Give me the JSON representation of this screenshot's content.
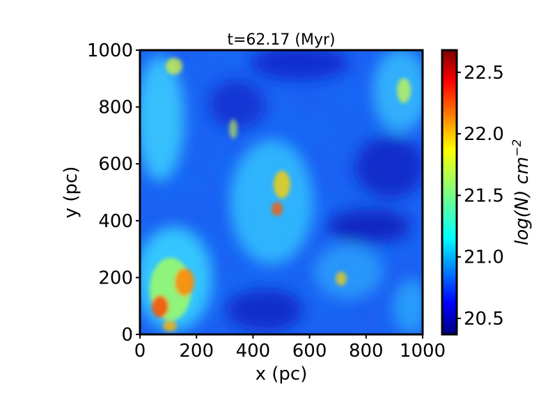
{
  "chart_data": {
    "type": "heatmap",
    "title": "t=62.17 (Myr)",
    "xlabel": "x (pc)",
    "ylabel": "y (pc)",
    "xlim": [
      0,
      1000
    ],
    "ylim": [
      0,
      1000
    ],
    "x_ticks": [
      0,
      200,
      400,
      600,
      800,
      1000
    ],
    "y_ticks": [
      0,
      200,
      400,
      600,
      800,
      1000
    ],
    "colormap": "jet",
    "colorbar": {
      "label_prefix": "log(N) cm",
      "label_exponent": "−2",
      "range": [
        20.37,
        22.68
      ],
      "ticks": [
        20.5,
        21.0,
        21.5,
        22.0,
        22.5
      ]
    },
    "grid": false,
    "description": "column density map of turbulent filamentary gas; densest clumps near lower-left (x≈100–200, y≈50–250) and a diagonal ridge through the center (x≈350–550, y≈300–650); low-density voids around (550–800, 100–550) and top-center"
  }
}
